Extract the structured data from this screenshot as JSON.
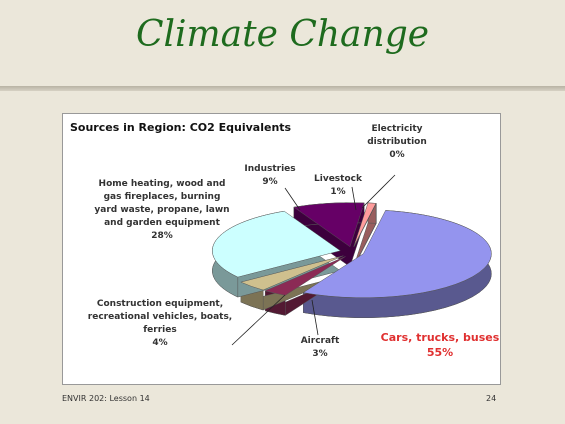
{
  "slide": {
    "title": "Climate Change",
    "footer": "ENVIR 202: Lesson 14",
    "page": "24"
  },
  "chart_data": {
    "type": "pie",
    "title": "Sources in Region: CO2 Equivalents",
    "categories": [
      "Cars, trucks, buses",
      "Aircraft",
      "Construction equipment, recreational vehicles, boats, ferries",
      "Home heating, wood and gas fireplaces, burning yard waste, propane, lawn and garden equipment",
      "Industries",
      "Livestock",
      "Electricity distribution"
    ],
    "values": [
      55,
      3,
      4,
      28,
      9,
      1,
      0
    ],
    "value_labels": [
      "55%",
      "3%",
      "4%",
      "28%",
      "9%",
      "1%",
      "0%"
    ],
    "colors": [
      "#9494ee",
      "#8b2a55",
      "#cfc08e",
      "#ccffff",
      "#660066",
      "#ff9c9c",
      "#ffd0d0"
    ]
  }
}
